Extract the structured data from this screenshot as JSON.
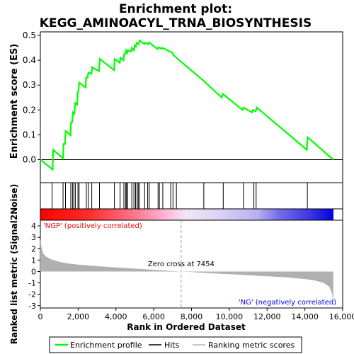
{
  "chart_data": {
    "type": "line",
    "title_line1": "Enrichment plot:",
    "title_line2": "KEGG_AMINOACYL_TRNA_BIOSYNTHESIS",
    "es_panel": {
      "ylabel": "Enrichment score (ES)",
      "ylim": [
        -0.05,
        0.5
      ],
      "yticks": [
        "0.0",
        "0.1",
        "0.2",
        "0.3",
        "0.4",
        "0.5"
      ],
      "ytick_values": [
        0.0,
        0.1,
        0.2,
        0.3,
        0.4,
        0.5
      ],
      "grid": false,
      "series": [
        {
          "name": "Enrichment profile",
          "color": "#00ff00",
          "x": [
            0,
            650,
            680,
            1200,
            1230,
            1300,
            1340,
            1600,
            1620,
            1680,
            1720,
            1800,
            1840,
            1950,
            1980,
            2000,
            2060,
            2400,
            2420,
            2500,
            2540,
            2700,
            2740,
            3100,
            3150,
            3900,
            3940,
            4200,
            4240,
            4400,
            4440,
            4500,
            4540,
            4600,
            4640,
            4800,
            4850,
            4950,
            5000,
            5050,
            5100,
            5200,
            5250,
            5500,
            5550,
            5700,
            5750,
            6200,
            6250,
            6400,
            6450,
            7000,
            7050,
            8600,
            9600,
            9650,
            10700,
            10750,
            11200,
            11250,
            11400,
            11450,
            14100,
            14150,
            15500
          ],
          "y": [
            0.0,
            -0.04,
            0.04,
            0.005,
            0.063,
            0.063,
            0.115,
            0.098,
            0.15,
            0.15,
            0.19,
            0.185,
            0.228,
            0.222,
            0.27,
            0.27,
            0.31,
            0.29,
            0.33,
            0.33,
            0.35,
            0.345,
            0.372,
            0.356,
            0.405,
            0.36,
            0.405,
            0.39,
            0.41,
            0.4,
            0.425,
            0.425,
            0.44,
            0.43,
            0.44,
            0.435,
            0.45,
            0.44,
            0.46,
            0.455,
            0.47,
            0.465,
            0.48,
            0.465,
            0.47,
            0.465,
            0.472,
            0.445,
            0.452,
            0.447,
            0.45,
            0.43,
            0.42,
            0.32,
            0.25,
            0.265,
            0.2,
            0.21,
            0.19,
            0.2,
            0.195,
            0.21,
            0.04,
            0.09,
            0.0
          ]
        }
      ]
    },
    "hits_panel": {
      "series_name": "Hits",
      "hit_positions": [
        620,
        1200,
        1330,
        1610,
        1700,
        1770,
        1850,
        1990,
        2050,
        2430,
        2530,
        2720,
        3130,
        3920,
        4220,
        4420,
        4520,
        4560,
        4620,
        4840,
        4950,
        5040,
        5120,
        5180,
        5230,
        5520,
        5680,
        5760,
        6230,
        6300,
        6480,
        6900,
        7020,
        7200,
        8650,
        9680,
        10750,
        11300,
        11420,
        14130
      ]
    },
    "colorbar": {
      "left_label": "'NGP' (positively correlated)",
      "right_label": "'NG' (negatively correlated)",
      "positive_color": "#ff0000",
      "negative_color": "#0000ff"
    },
    "metric_panel": {
      "series_name": "Ranking metric scores",
      "ylabel": "Ranked list metric (Signal2Noise)",
      "ylim": [
        -3.2,
        4.5
      ],
      "yticks": [
        "4",
        "3",
        "2",
        "1",
        "0",
        "-1",
        "-2",
        "-3"
      ],
      "ytick_values": [
        4,
        3,
        2,
        1,
        0,
        -1,
        -2,
        -3
      ],
      "fill_color": "#b0b0b0",
      "x": [
        0,
        50,
        150,
        300,
        600,
        1000,
        1500,
        2000,
        3000,
        4000,
        5000,
        6000,
        7000,
        7454,
        8000,
        9000,
        10000,
        11000,
        12000,
        13000,
        14000,
        14500,
        15000,
        15300,
        15450,
        15500
      ],
      "y": [
        2.9,
        2.2,
        1.6,
        1.3,
        1.05,
        0.85,
        0.7,
        0.6,
        0.47,
        0.36,
        0.25,
        0.15,
        0.05,
        0.0,
        -0.05,
        -0.15,
        -0.24,
        -0.33,
        -0.42,
        -0.52,
        -0.66,
        -0.78,
        -1.0,
        -1.35,
        -2.0,
        -2.75
      ],
      "zero_cross_label": "Zero cross at 7454",
      "zero_cross_at": 7454
    },
    "x_axis": {
      "xlabel": "Rank in Ordered Dataset",
      "xlim": [
        0,
        16000
      ],
      "xticks": [
        "0",
        "2,000",
        "4,000",
        "6,000",
        "8,000",
        "10,000",
        "12,000",
        "14,000",
        "16,000"
      ],
      "xtick_values": [
        0,
        2000,
        4000,
        6000,
        8000,
        10000,
        12000,
        14000,
        16000
      ]
    },
    "legend": {
      "placement": "bottom",
      "entries": [
        {
          "label": "Enrichment profile",
          "color": "#00ff00"
        },
        {
          "label": "Hits",
          "color": "#000000"
        },
        {
          "label": "Ranking metric scores",
          "color": "#b0b0b0"
        }
      ]
    }
  }
}
